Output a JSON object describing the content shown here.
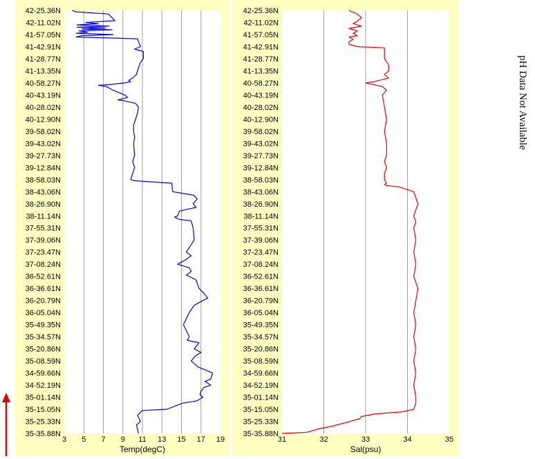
{
  "side_note": "pH Data Not Available",
  "latitude_labels": [
    "42-25.36N",
    "42-11.02N",
    "41-57.05N",
    "41-42.91N",
    "41-28.77N",
    "41-13.35N",
    "40-58.27N",
    "40-43.19N",
    "40-28.02N",
    "40-12.90N",
    "39-58.02N",
    "39-43.02N",
    "39-27.73N",
    "39-12.84N",
    "38-58.03N",
    "38-43.06N",
    "38-26.90N",
    "38-11.14N",
    "37-55.31N",
    "37-39.06N",
    "37-23.47N",
    "37-08.24N",
    "36-52.61N",
    "36-36.61N",
    "36-20.79N",
    "36-05.04N",
    "35-49.35N",
    "35-34.57N",
    "35-20.86N",
    "35-08.59N",
    "34-59.66N",
    "34-52.19N",
    "35-01.14N",
    "35-15.05N",
    "35-25.33N",
    "35-35.88N"
  ],
  "colors": {
    "panel_bg": "#ffffc2",
    "plot_bg": "#ffffff",
    "grid": "#a0a0a0",
    "temp": "#0000e6",
    "sal": "#e60000",
    "arrow": "#e00000"
  },
  "chart_data": [
    {
      "type": "line",
      "xlabel": "Temp(degC)",
      "xlim": [
        3,
        19
      ],
      "xticks": [
        3,
        5,
        7,
        9,
        11,
        13,
        15,
        17,
        19
      ],
      "grid": true,
      "categories_ref": "latitude_labels",
      "series": [
        {
          "color": "#0000e6",
          "x": [
            3.8,
            4.2,
            7.5,
            8.2,
            5.2,
            6.5,
            4.3,
            7.6,
            4.3,
            7.2,
            4.8,
            7.9,
            4.5,
            5.4,
            4.2,
            8.0,
            4.8,
            4.2,
            10.5,
            10.8,
            10.2,
            11.1,
            11.1,
            10.8,
            10.5,
            10.4,
            10.0,
            9.6,
            9.8,
            9.2,
            7.5,
            6.5,
            7.3,
            8.0,
            9.2,
            9.5,
            8.5,
            9.2,
            9.8,
            10.3,
            10.6,
            10.5,
            10.3,
            10.1,
            10.1,
            10.2,
            10.1,
            10.2,
            10.0,
            10.2,
            10.0,
            9.8,
            10.2,
            14.0,
            14.1,
            16.3,
            16.6,
            16.2,
            16.5,
            14.8,
            14.6,
            14.3,
            14.8,
            16.0,
            16.2,
            16.3,
            15.5,
            16.0,
            15.5,
            14.6,
            15.8,
            16.0,
            15.5,
            16.5,
            16.8,
            17.3,
            17.7,
            17.2,
            16.3,
            15.8,
            15.5,
            15.2,
            15.5,
            15.8,
            15.6,
            16.8,
            16.3,
            17.0,
            16.4,
            16.0,
            16.7,
            17.3,
            18.2,
            18.0,
            17.4,
            18.0,
            17.3,
            17.0,
            16.9,
            17.2,
            16.6,
            15.1,
            13.5,
            11.0,
            10.5,
            10.8,
            10.4,
            10.6
          ],
          "y": [
            0.0,
            0.12,
            0.3,
            0.85,
            1.0,
            1.1,
            1.2,
            1.3,
            1.4,
            1.45,
            1.55,
            1.6,
            1.7,
            1.8,
            1.9,
            2.0,
            2.1,
            2.2,
            2.35,
            3.0,
            3.2,
            3.4,
            4.0,
            4.3,
            5.0,
            5.3,
            5.6,
            5.8,
            5.9,
            6.0,
            6.15,
            6.2,
            6.3,
            6.6,
            7.0,
            7.2,
            7.4,
            7.5,
            7.6,
            7.7,
            8.0,
            8.5,
            9.0,
            9.5,
            10.0,
            10.5,
            11.0,
            12.0,
            12.5,
            13.0,
            13.5,
            14.0,
            14.1,
            14.3,
            15.0,
            15.3,
            15.6,
            16.0,
            16.3,
            16.6,
            17.0,
            17.1,
            17.3,
            17.4,
            18.0,
            19.0,
            20.0,
            20.3,
            20.6,
            21.0,
            21.3,
            21.6,
            21.9,
            22.3,
            23.0,
            23.4,
            23.8,
            24.0,
            24.4,
            25.0,
            25.5,
            26.0,
            26.5,
            27.0,
            27.3,
            27.5,
            28.0,
            28.3,
            28.6,
            29.0,
            29.5,
            29.7,
            30.0,
            30.5,
            30.7,
            31.0,
            31.2,
            31.5,
            31.8,
            32.0,
            32.3,
            32.5,
            33.0,
            33.1,
            33.5,
            34.0,
            34.3,
            35.0
          ]
        }
      ]
    },
    {
      "type": "line",
      "xlabel": "Sal(psu)",
      "xlim": [
        31,
        35
      ],
      "xticks": [
        31,
        32,
        33,
        34,
        35
      ],
      "grid": true,
      "categories_ref": "latitude_labels",
      "series": [
        {
          "color": "#e60000",
          "x": [
            32.6,
            32.8,
            32.9,
            32.8,
            32.7,
            32.9,
            32.6,
            32.8,
            32.7,
            32.8,
            32.6,
            32.7,
            32.6,
            32.6,
            32.8,
            33.45,
            33.45,
            33.55,
            33.55,
            33.45,
            33.55,
            33.2,
            33.0,
            33.4,
            33.5,
            33.4,
            33.45,
            33.5,
            33.45,
            33.5,
            33.5,
            33.45,
            33.5,
            33.45,
            33.45,
            33.5,
            33.45,
            33.5,
            33.8,
            34.15,
            34.2,
            34.25,
            34.15,
            34.2,
            34.15,
            34.2,
            34.15,
            34.2,
            34.15,
            34.25,
            34.2,
            34.15,
            34.2,
            34.15,
            34.2,
            34.15,
            34.2,
            34.15,
            34.2,
            34.2,
            34.15,
            33.9,
            33.2,
            32.9,
            32.85,
            32.2,
            31.9,
            31.6,
            31.0
          ],
          "y": [
            0.0,
            0.3,
            0.6,
            0.9,
            1.1,
            1.3,
            1.5,
            1.7,
            1.9,
            2.1,
            2.2,
            2.4,
            2.6,
            2.8,
            3.0,
            3.1,
            4.0,
            4.5,
            5.0,
            5.3,
            5.6,
            5.9,
            6.0,
            6.3,
            6.6,
            7.0,
            8.0,
            9.0,
            10.0,
            11.0,
            12.0,
            12.5,
            13.0,
            13.5,
            14.0,
            14.3,
            14.4,
            14.5,
            14.6,
            15.0,
            15.5,
            16.0,
            17.0,
            17.5,
            18.0,
            19.0,
            20.0,
            21.0,
            22.0,
            23.0,
            24.0,
            25.0,
            26.0,
            27.0,
            28.0,
            29.0,
            30.0,
            31.0,
            32.0,
            32.5,
            33.0,
            33.2,
            33.4,
            33.6,
            33.8,
            34.4,
            34.6,
            34.9,
            35.0
          ]
        }
      ]
    }
  ]
}
